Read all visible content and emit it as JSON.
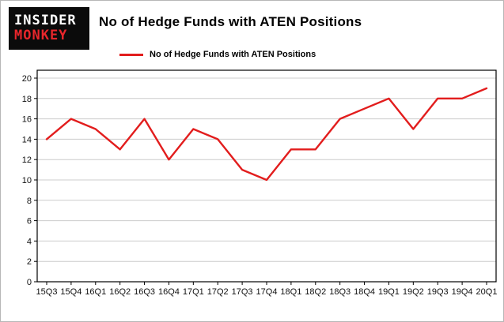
{
  "header": {
    "logo_line1": "INSIDER",
    "logo_line2": "MONKEY",
    "title": "No of Hedge Funds with ATEN Positions"
  },
  "legend": {
    "label": "No of Hedge Funds with ATEN Positions",
    "color": "#e21d1d"
  },
  "chart_data": {
    "type": "line",
    "title": "No of Hedge Funds with ATEN Positions",
    "categories": [
      "15Q3",
      "15Q4",
      "16Q1",
      "16Q2",
      "16Q3",
      "16Q4",
      "17Q1",
      "17Q2",
      "17Q3",
      "17Q4",
      "18Q1",
      "18Q2",
      "18Q3",
      "18Q4",
      "19Q1",
      "19Q2",
      "19Q3",
      "19Q4",
      "20Q1"
    ],
    "values": [
      14,
      16,
      15,
      13,
      16,
      12,
      15,
      14,
      11,
      10,
      13,
      13,
      16,
      17,
      18,
      15,
      18,
      18,
      19
    ],
    "xlabel": "",
    "ylabel": "",
    "ylim": [
      0,
      20
    ],
    "yticks": [
      0,
      2,
      4,
      6,
      8,
      10,
      12,
      14,
      16,
      18,
      20
    ],
    "grid": true,
    "grid_color": "#cccccc",
    "axis_color": "#000000",
    "line_color": "#e21d1d",
    "legend_position": "top"
  }
}
